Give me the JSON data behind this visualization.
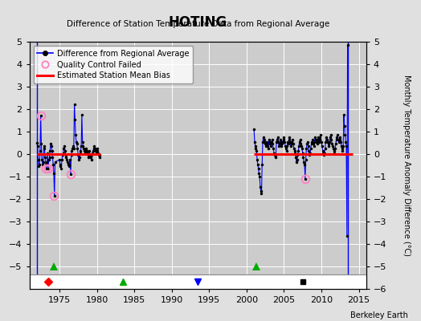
{
  "title": "HOTING",
  "subtitle": "Difference of Station Temperature Data from Regional Average",
  "ylabel_right": "Monthly Temperature Anomaly Difference (°C)",
  "credit": "Berkeley Earth",
  "xlim": [
    1971,
    2016
  ],
  "ylim": [
    -6,
    5
  ],
  "yticks_right": [
    -6,
    -5,
    -4,
    -3,
    -2,
    -1,
    0,
    1,
    2,
    3,
    4,
    5
  ],
  "yticks_left": [
    -5,
    -4,
    -3,
    -2,
    -1,
    0,
    1,
    2,
    3,
    4,
    5
  ],
  "xticks": [
    1975,
    1980,
    1985,
    1990,
    1995,
    2000,
    2005,
    2010,
    2015
  ],
  "bg_color": "#e0e0e0",
  "plot_bg_color": "#cccccc",
  "grid_color": "#ffffff",
  "segment1_bias": 0.0,
  "segment2_bias": 0.0,
  "segment1_start": 1972.0,
  "segment1_end": 1980.5,
  "segment2_start": 2001.0,
  "segment2_end": 2014.2,
  "record_gap1_x": 1974.3,
  "record_gap2_x": 2001.3,
  "blue_vline1_x": 1972.0,
  "blue_vline2_x": 2013.5,
  "qc_failed_points": [
    [
      1972.5,
      1.7
    ],
    [
      1973.2,
      -0.65
    ],
    [
      1973.5,
      -0.65
    ],
    [
      1974.25,
      -1.85
    ],
    [
      1976.5,
      -0.9
    ],
    [
      2007.83,
      -1.1
    ]
  ],
  "segment1_data": [
    [
      1972.0,
      0.5
    ],
    [
      1972.083,
      0.35
    ],
    [
      1972.167,
      -0.25
    ],
    [
      1972.25,
      -0.55
    ],
    [
      1972.333,
      -0.45
    ],
    [
      1972.417,
      0.15
    ],
    [
      1972.5,
      1.7
    ],
    [
      1972.583,
      0.45
    ],
    [
      1972.667,
      -0.25
    ],
    [
      1972.75,
      -0.45
    ],
    [
      1972.833,
      -0.35
    ],
    [
      1972.917,
      0.25
    ],
    [
      1973.0,
      0.35
    ],
    [
      1973.083,
      -0.15
    ],
    [
      1973.167,
      -0.45
    ],
    [
      1973.25,
      -0.65
    ],
    [
      1973.333,
      -0.35
    ],
    [
      1973.417,
      0.05
    ],
    [
      1973.5,
      -0.65
    ],
    [
      1973.583,
      -0.25
    ],
    [
      1973.667,
      -0.15
    ],
    [
      1973.75,
      0.15
    ],
    [
      1973.833,
      0.45
    ],
    [
      1973.917,
      0.35
    ],
    [
      1974.0,
      0.15
    ],
    [
      1974.083,
      -0.15
    ],
    [
      1974.167,
      -0.45
    ],
    [
      1974.25,
      -0.85
    ],
    [
      1974.333,
      -1.85
    ],
    [
      1974.417,
      -0.35
    ],
    [
      1975.0,
      -0.25
    ],
    [
      1975.083,
      -0.45
    ],
    [
      1975.167,
      -0.55
    ],
    [
      1975.25,
      -0.65
    ],
    [
      1975.333,
      -0.25
    ],
    [
      1975.417,
      -0.05
    ],
    [
      1975.5,
      0.05
    ],
    [
      1975.583,
      0.25
    ],
    [
      1975.667,
      0.35
    ],
    [
      1975.75,
      0.15
    ],
    [
      1975.833,
      -0.05
    ],
    [
      1975.917,
      -0.15
    ],
    [
      1976.0,
      -0.25
    ],
    [
      1976.083,
      -0.35
    ],
    [
      1976.167,
      -0.45
    ],
    [
      1976.25,
      -0.55
    ],
    [
      1976.333,
      -0.45
    ],
    [
      1976.417,
      -0.25
    ],
    [
      1976.5,
      -0.9
    ],
    [
      1976.583,
      -0.05
    ],
    [
      1976.667,
      0.15
    ],
    [
      1976.75,
      0.25
    ],
    [
      1976.833,
      0.35
    ],
    [
      1976.917,
      0.25
    ],
    [
      1977.0,
      2.2
    ],
    [
      1977.083,
      1.55
    ],
    [
      1977.167,
      0.85
    ],
    [
      1977.25,
      0.55
    ],
    [
      1977.333,
      0.45
    ],
    [
      1977.417,
      0.25
    ],
    [
      1977.5,
      -0.05
    ],
    [
      1977.583,
      -0.25
    ],
    [
      1977.667,
      -0.15
    ],
    [
      1977.75,
      0.05
    ],
    [
      1977.833,
      0.15
    ],
    [
      1977.917,
      0.35
    ],
    [
      1978.0,
      1.75
    ],
    [
      1978.083,
      0.55
    ],
    [
      1978.167,
      0.35
    ],
    [
      1978.25,
      0.25
    ],
    [
      1978.333,
      0.15
    ],
    [
      1978.417,
      0.05
    ],
    [
      1978.5,
      0.15
    ],
    [
      1978.583,
      0.25
    ],
    [
      1978.667,
      0.15
    ],
    [
      1978.75,
      0.05
    ],
    [
      1978.833,
      -0.05
    ],
    [
      1978.917,
      -0.15
    ],
    [
      1979.0,
      0.15
    ],
    [
      1979.083,
      -0.05
    ],
    [
      1979.167,
      -0.15
    ],
    [
      1979.25,
      -0.25
    ],
    [
      1979.333,
      -0.05
    ],
    [
      1979.417,
      0.05
    ],
    [
      1979.5,
      0.15
    ],
    [
      1979.583,
      0.25
    ],
    [
      1979.667,
      0.35
    ],
    [
      1979.75,
      0.25
    ],
    [
      1979.833,
      0.15
    ],
    [
      1979.917,
      0.05
    ],
    [
      1980.0,
      0.25
    ],
    [
      1980.083,
      0.15
    ],
    [
      1980.167,
      0.05
    ],
    [
      1980.25,
      -0.05
    ],
    [
      1980.333,
      -0.15
    ],
    [
      1980.417,
      -0.05
    ]
  ],
  "segment2_data": [
    [
      2001.0,
      1.1
    ],
    [
      2001.083,
      0.55
    ],
    [
      2001.167,
      0.35
    ],
    [
      2001.25,
      0.25
    ],
    [
      2001.333,
      0.15
    ],
    [
      2001.417,
      -0.25
    ],
    [
      2001.5,
      -0.45
    ],
    [
      2001.583,
      -0.65
    ],
    [
      2001.667,
      -0.85
    ],
    [
      2001.75,
      -1.0
    ],
    [
      2001.833,
      -1.45
    ],
    [
      2001.917,
      -1.65
    ],
    [
      2002.0,
      -1.75
    ],
    [
      2002.083,
      -0.45
    ],
    [
      2002.167,
      0.55
    ],
    [
      2002.25,
      0.75
    ],
    [
      2002.333,
      0.65
    ],
    [
      2002.417,
      0.55
    ],
    [
      2002.5,
      0.45
    ],
    [
      2002.583,
      0.35
    ],
    [
      2002.667,
      0.55
    ],
    [
      2002.75,
      0.45
    ],
    [
      2002.833,
      0.35
    ],
    [
      2002.917,
      0.25
    ],
    [
      2003.0,
      0.65
    ],
    [
      2003.083,
      0.55
    ],
    [
      2003.167,
      0.45
    ],
    [
      2003.25,
      0.35
    ],
    [
      2003.333,
      0.55
    ],
    [
      2003.417,
      0.65
    ],
    [
      2003.5,
      0.45
    ],
    [
      2003.583,
      0.25
    ],
    [
      2003.667,
      0.05
    ],
    [
      2003.75,
      -0.05
    ],
    [
      2003.833,
      -0.15
    ],
    [
      2003.917,
      -0.05
    ],
    [
      2004.0,
      0.55
    ],
    [
      2004.083,
      0.65
    ],
    [
      2004.167,
      0.75
    ],
    [
      2004.25,
      0.55
    ],
    [
      2004.333,
      0.35
    ],
    [
      2004.417,
      0.45
    ],
    [
      2004.5,
      0.65
    ],
    [
      2004.583,
      0.55
    ],
    [
      2004.667,
      0.35
    ],
    [
      2004.75,
      0.45
    ],
    [
      2004.833,
      0.55
    ],
    [
      2004.917,
      0.65
    ],
    [
      2005.0,
      0.75
    ],
    [
      2005.083,
      0.55
    ],
    [
      2005.167,
      0.35
    ],
    [
      2005.25,
      0.25
    ],
    [
      2005.333,
      0.15
    ],
    [
      2005.417,
      0.35
    ],
    [
      2005.5,
      0.55
    ],
    [
      2005.583,
      0.45
    ],
    [
      2005.667,
      0.65
    ],
    [
      2005.75,
      0.75
    ],
    [
      2005.833,
      0.55
    ],
    [
      2005.917,
      0.35
    ],
    [
      2006.0,
      0.45
    ],
    [
      2006.083,
      0.55
    ],
    [
      2006.167,
      0.65
    ],
    [
      2006.25,
      0.45
    ],
    [
      2006.333,
      0.25
    ],
    [
      2006.417,
      0.15
    ],
    [
      2006.5,
      0.05
    ],
    [
      2006.583,
      -0.15
    ],
    [
      2006.667,
      -0.35
    ],
    [
      2006.75,
      -0.25
    ],
    [
      2006.833,
      -0.05
    ],
    [
      2006.917,
      0.15
    ],
    [
      2007.0,
      0.35
    ],
    [
      2007.083,
      0.55
    ],
    [
      2007.167,
      0.65
    ],
    [
      2007.25,
      0.45
    ],
    [
      2007.333,
      0.35
    ],
    [
      2007.417,
      0.25
    ],
    [
      2007.5,
      0.05
    ],
    [
      2007.583,
      -0.15
    ],
    [
      2007.667,
      -0.35
    ],
    [
      2007.75,
      -0.45
    ],
    [
      2007.833,
      -1.1
    ],
    [
      2007.917,
      -0.25
    ],
    [
      2008.0,
      0.25
    ],
    [
      2008.083,
      0.45
    ],
    [
      2008.167,
      0.55
    ],
    [
      2008.25,
      0.35
    ],
    [
      2008.333,
      0.15
    ],
    [
      2008.417,
      -0.05
    ],
    [
      2008.5,
      0.05
    ],
    [
      2008.583,
      0.25
    ],
    [
      2008.667,
      0.45
    ],
    [
      2008.75,
      0.55
    ],
    [
      2008.833,
      0.65
    ],
    [
      2008.917,
      0.45
    ],
    [
      2009.0,
      0.35
    ],
    [
      2009.083,
      0.55
    ],
    [
      2009.167,
      0.75
    ],
    [
      2009.25,
      0.65
    ],
    [
      2009.333,
      0.55
    ],
    [
      2009.417,
      0.45
    ],
    [
      2009.5,
      0.65
    ],
    [
      2009.583,
      0.75
    ],
    [
      2009.667,
      0.55
    ],
    [
      2009.75,
      0.65
    ],
    [
      2009.833,
      0.75
    ],
    [
      2009.917,
      0.85
    ],
    [
      2010.0,
      0.55
    ],
    [
      2010.083,
      0.35
    ],
    [
      2010.167,
      0.15
    ],
    [
      2010.25,
      0.05
    ],
    [
      2010.333,
      -0.05
    ],
    [
      2010.417,
      0.05
    ],
    [
      2010.5,
      0.25
    ],
    [
      2010.583,
      0.55
    ],
    [
      2010.667,
      0.75
    ],
    [
      2010.75,
      0.65
    ],
    [
      2010.833,
      0.55
    ],
    [
      2010.917,
      0.45
    ],
    [
      2011.0,
      0.35
    ],
    [
      2011.083,
      0.55
    ],
    [
      2011.167,
      0.75
    ],
    [
      2011.25,
      0.85
    ],
    [
      2011.333,
      0.65
    ],
    [
      2011.417,
      0.45
    ],
    [
      2011.5,
      0.35
    ],
    [
      2011.583,
      0.25
    ],
    [
      2011.667,
      0.15
    ],
    [
      2011.75,
      0.05
    ],
    [
      2011.833,
      0.25
    ],
    [
      2011.917,
      0.45
    ],
    [
      2012.0,
      0.65
    ],
    [
      2012.083,
      0.75
    ],
    [
      2012.167,
      0.85
    ],
    [
      2012.25,
      0.65
    ],
    [
      2012.333,
      0.55
    ],
    [
      2012.417,
      0.65
    ],
    [
      2012.5,
      0.75
    ],
    [
      2012.583,
      0.55
    ],
    [
      2012.667,
      0.35
    ],
    [
      2012.75,
      0.25
    ],
    [
      2012.833,
      0.15
    ],
    [
      2012.917,
      0.35
    ],
    [
      2013.0,
      1.75
    ],
    [
      2013.083,
      1.25
    ],
    [
      2013.167,
      0.85
    ],
    [
      2013.25,
      0.55
    ],
    [
      2013.333,
      0.35
    ],
    [
      2013.417,
      -3.65
    ],
    [
      2013.5,
      4.85
    ]
  ]
}
